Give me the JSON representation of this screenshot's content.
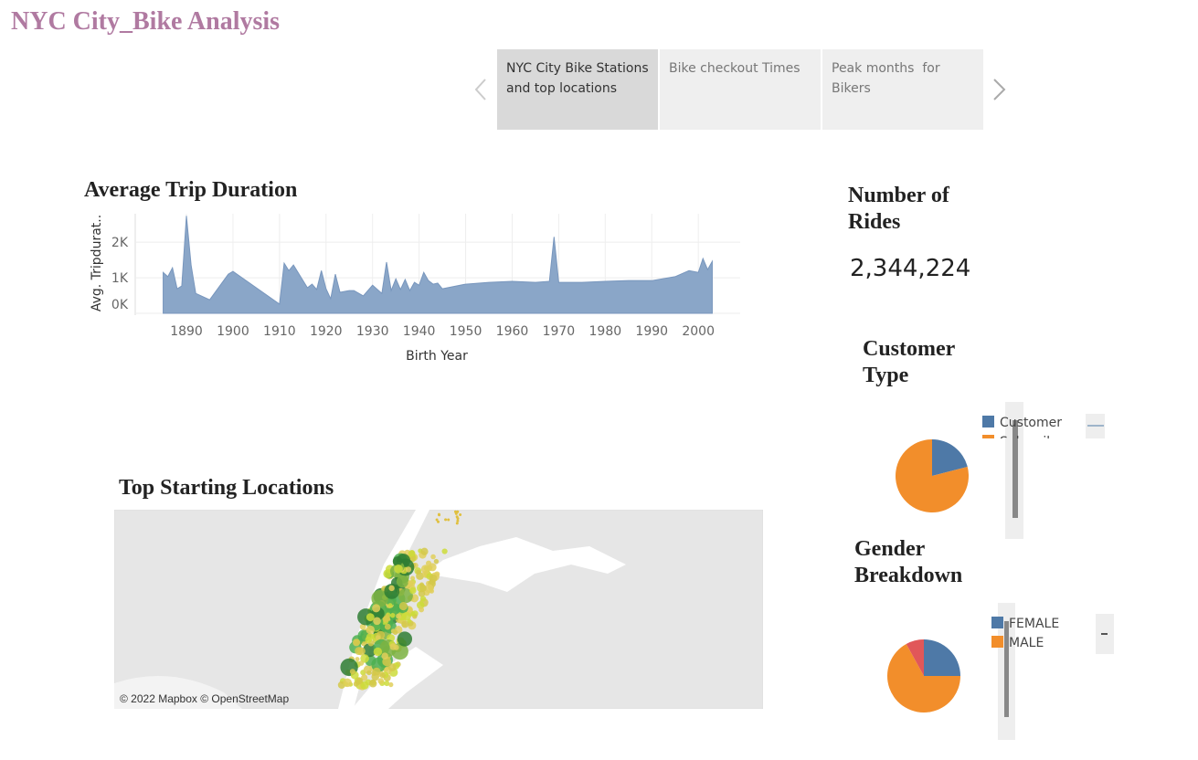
{
  "header": {
    "title": "NYC City_Bike Analysis"
  },
  "story_tabs": [
    "NYC City Bike Stations and top locations",
    "Bike checkout Times",
    "Peak months  for Bikers"
  ],
  "number_of_rides": {
    "title": "Number of Rides",
    "value": "2,344,224"
  },
  "map": {
    "title": "Top Starting Locations",
    "attribution": "© 2022 Mapbox © OpenStreetMap"
  },
  "chart_data": [
    {
      "type": "area",
      "title": "Average Trip Duration",
      "x_label": "Birth Year",
      "y_label": "Avg. Tripdurat..",
      "color": "#8aa6c8",
      "x": [
        1885,
        1886,
        1887,
        1888,
        1889,
        1890,
        1891,
        1892,
        1895,
        1899,
        1900,
        1910,
        1911,
        1912,
        1913,
        1916,
        1917,
        1918,
        1919,
        1920,
        1921,
        1922,
        1923,
        1925,
        1926,
        1928,
        1930,
        1932,
        1933,
        1934,
        1935,
        1936,
        1937,
        1938,
        1939,
        1940,
        1941,
        1942,
        1943,
        1944,
        1945,
        1950,
        1955,
        1960,
        1965,
        1968,
        1969,
        1970,
        1975,
        1980,
        1985,
        1990,
        1995,
        1998,
        2000,
        2001,
        2002,
        2003
      ],
      "values": [
        1150,
        1030,
        1280,
        690,
        770,
        2740,
        1360,
        560,
        380,
        1100,
        1180,
        260,
        1410,
        1200,
        1360,
        720,
        820,
        670,
        1200,
        690,
        410,
        1100,
        590,
        640,
        640,
        490,
        790,
        560,
        1440,
        640,
        970,
        670,
        950,
        640,
        870,
        790,
        1150,
        920,
        820,
        850,
        690,
        820,
        870,
        900,
        870,
        900,
        2150,
        870,
        870,
        900,
        920,
        920,
        1030,
        1200,
        1150,
        1540,
        1230,
        1460
      ],
      "xlim": [
        1879,
        2009
      ],
      "xticks": [
        1890,
        1900,
        1910,
        1920,
        1930,
        1940,
        1950,
        1960,
        1970,
        1980,
        1990,
        2000
      ],
      "ylim": [
        0,
        2800
      ],
      "yticks": [
        {
          "value": 0,
          "label": "0K"
        },
        {
          "value": 1000,
          "label": "1K"
        },
        {
          "value": 2000,
          "label": "2K"
        }
      ],
      "grid": true
    },
    {
      "type": "pie",
      "title": "Customer Type",
      "categories": [
        "Customer",
        "Subscriber"
      ],
      "values": [
        21,
        79
      ],
      "colors": [
        "#4e79a7",
        "#f28e2b"
      ]
    },
    {
      "type": "pie",
      "title": "Gender Breakdown",
      "categories": [
        "FEMALE",
        "MALE",
        null
      ],
      "values": [
        25,
        67,
        8
      ],
      "colors": [
        "#4e79a7",
        "#f28e2b",
        "#e15759"
      ]
    }
  ]
}
